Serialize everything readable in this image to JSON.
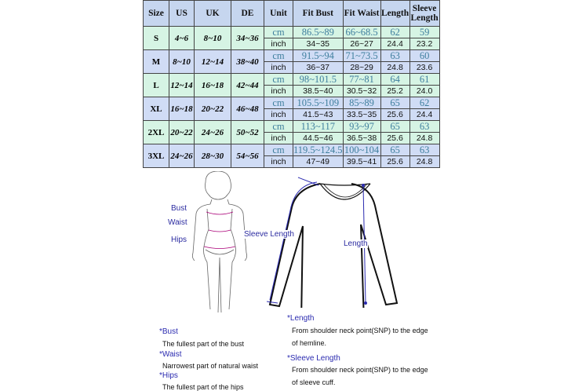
{
  "table": {
    "headers": [
      "Size",
      "US",
      "UK",
      "DE",
      "Unit",
      "Fit Bust",
      "Fit Waist",
      "Length",
      "Sleeve Length"
    ],
    "rows": [
      {
        "size": "S",
        "us": "4~6",
        "uk": "8~10",
        "de": "34~36",
        "cm": [
          "cm",
          "86.5~89",
          "66~68.5",
          "62",
          "59"
        ],
        "inch": [
          "inch",
          "34~35",
          "26~27",
          "24.4",
          "23.2"
        ]
      },
      {
        "size": "M",
        "us": "8~10",
        "uk": "12~14",
        "de": "38~40",
        "cm": [
          "cm",
          "91.5~94",
          "71~73.5",
          "63",
          "60"
        ],
        "inch": [
          "inch",
          "36~37",
          "28~29",
          "24.8",
          "23.6"
        ]
      },
      {
        "size": "L",
        "us": "12~14",
        "uk": "16~18",
        "de": "42~44",
        "cm": [
          "cm",
          "98~101.5",
          "77~81",
          "64",
          "61"
        ],
        "inch": [
          "inch",
          "38.5~40",
          "30.5~32",
          "25.2",
          "24.0"
        ]
      },
      {
        "size": "XL",
        "us": "16~18",
        "uk": "20~22",
        "de": "46~48",
        "cm": [
          "cm",
          "105.5~109",
          "85~89",
          "65",
          "62"
        ],
        "inch": [
          "inch",
          "41.5~43",
          "33.5~35",
          "25.6",
          "24.4"
        ]
      },
      {
        "size": "2XL",
        "us": "20~22",
        "uk": "24~26",
        "de": "50~52",
        "cm": [
          "cm",
          "113~117",
          "93~97",
          "65",
          "63"
        ],
        "inch": [
          "inch",
          "44.5~46",
          "36.5~38",
          "25.6",
          "24.8"
        ]
      },
      {
        "size": "3XL",
        "us": "24~26",
        "uk": "28~30",
        "de": "54~56",
        "cm": [
          "cm",
          "119.5~124.5",
          "100~104",
          "65",
          "63"
        ],
        "inch": [
          "inch",
          "47~49",
          "39.5~41",
          "25.6",
          "24.8"
        ]
      }
    ]
  },
  "body_figure": {
    "labels": [
      "Bust",
      "Waist",
      "Hips"
    ]
  },
  "shirt_figure": {
    "labels": [
      "Sleeve Length",
      "Length"
    ]
  },
  "notes_left": [
    {
      "term": "*Bust",
      "desc": "The fullest part of the bust"
    },
    {
      "term": "*Waist",
      "desc": "Narrowest part of natural waist"
    },
    {
      "term": "*Hips",
      "desc": "The fullest part of the hips"
    }
  ],
  "notes_right": [
    {
      "term": "*Length",
      "desc1": "From shoulder neck point(SNP) to the edge",
      "desc2": "of hemline."
    },
    {
      "term": "*Sleeve Length",
      "desc1": "From shoulder neck point(SNP) to the edge",
      "desc2": "of sleeve cuff."
    }
  ],
  "colors": {
    "header": "#c6d6ef",
    "row_green": "#d6f4e4",
    "row_blue": "#d0dcf5",
    "label_blue": "#2b2ba0",
    "cm_text": "#3f7f9e"
  }
}
